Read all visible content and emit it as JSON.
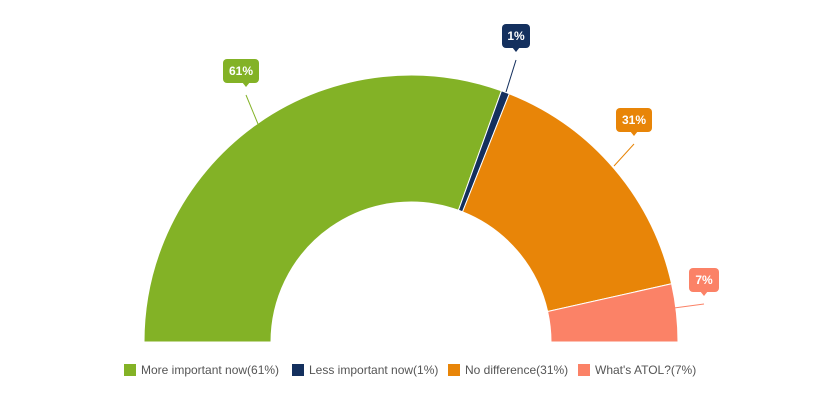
{
  "chart_data": {
    "type": "pie",
    "variant": "semi-donut",
    "title": "",
    "slices": [
      {
        "name": "More important now",
        "value": 61,
        "label": "61%",
        "legend": "More important now(61%)",
        "color": "#83b226"
      },
      {
        "name": "Less important now",
        "value": 1,
        "label": "1%",
        "legend": "Less important now(1%)",
        "color": "#14305e"
      },
      {
        "name": "No difference",
        "value": 31,
        "label": "31%",
        "legend": "No difference(31%)",
        "color": "#e88508"
      },
      {
        "name": "What's ATOL?",
        "value": 7,
        "label": "7%",
        "legend": "What's ATOL?(7%)",
        "color": "#fb8267"
      }
    ],
    "legend_position": "bottom"
  }
}
